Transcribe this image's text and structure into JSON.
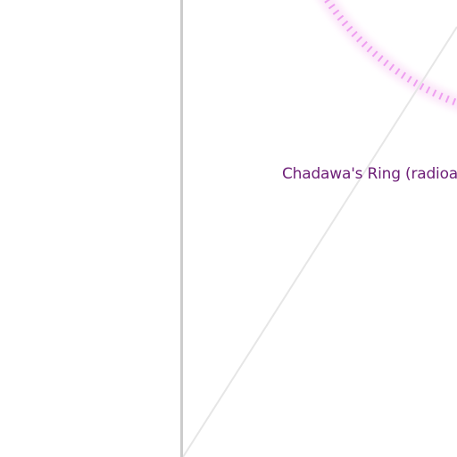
{
  "map": {
    "place_label": "Chadawa's Ring (radioa",
    "colors": {
      "background": "#ffffff",
      "label": "#6e1f78",
      "boundary": "#cccccc",
      "road": "#e6e6e6",
      "ring_glow": "#fbe4f8",
      "ring_ticks": "#ee9ef0"
    }
  }
}
